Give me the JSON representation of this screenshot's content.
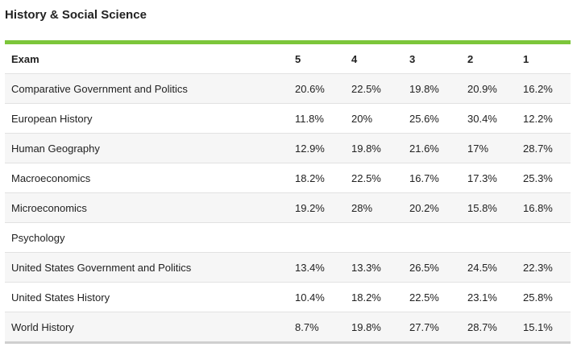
{
  "section": {
    "title": "History & Social Science",
    "accent_color": "#7cc63a"
  },
  "table": {
    "headers": [
      "Exam",
      "5",
      "4",
      "3",
      "2",
      "1"
    ],
    "rows": [
      [
        "Comparative Government and Politics",
        "20.6%",
        "22.5%",
        "19.8%",
        "20.9%",
        "16.2%"
      ],
      [
        "European History",
        "11.8%",
        "20%",
        "25.6%",
        "30.4%",
        "12.2%"
      ],
      [
        "Human Geography",
        "12.9%",
        "19.8%",
        "21.6%",
        "17%",
        "28.7%"
      ],
      [
        "Macroeconomics",
        "18.2%",
        "22.5%",
        "16.7%",
        "17.3%",
        "25.3%"
      ],
      [
        "Microeconomics",
        "19.2%",
        "28%",
        "20.2%",
        "15.8%",
        "16.8%"
      ],
      [
        "Psychology",
        "",
        "",
        "",
        "",
        ""
      ],
      [
        "United States Government and Politics",
        "13.4%",
        "13.3%",
        "26.5%",
        "24.5%",
        "22.3%"
      ],
      [
        "United States History",
        "10.4%",
        "18.2%",
        "22.5%",
        "23.1%",
        "25.8%"
      ],
      [
        "World History",
        "8.7%",
        "19.8%",
        "27.7%",
        "28.7%",
        "15.1%"
      ]
    ]
  }
}
